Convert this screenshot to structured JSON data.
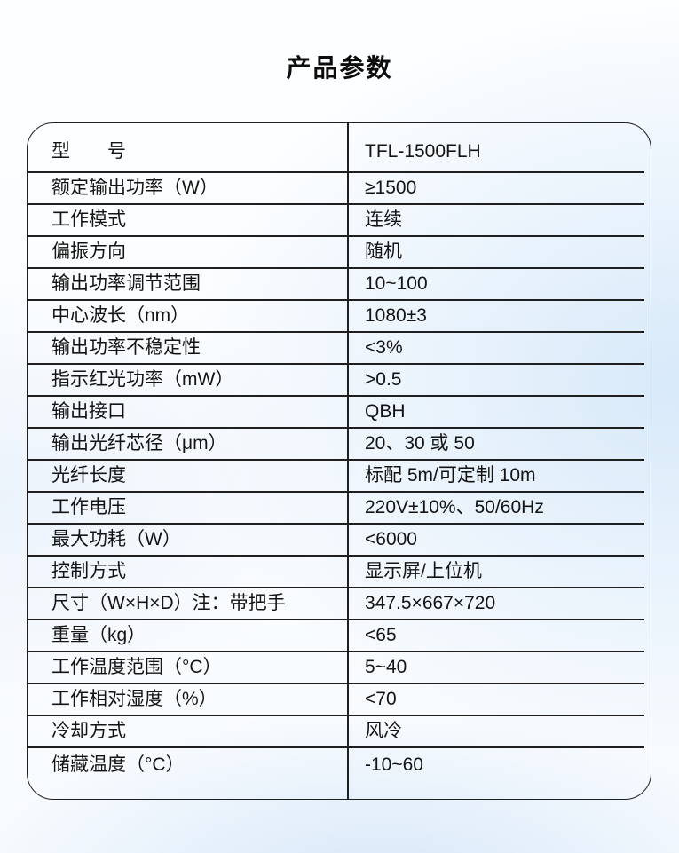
{
  "page": {
    "title": "产品参数"
  },
  "colors": {
    "text": "#141414",
    "table_border": "#1f1f1f",
    "background_tint_right": "#d6e8f9",
    "background_tint_bottom": "#d3e5f8",
    "background_base": "#fdfeff"
  },
  "table": {
    "columns": [
      "parameter",
      "value"
    ],
    "rows": [
      {
        "label": "型　　号",
        "value": "TFL-1500FLH"
      },
      {
        "label": "额定输出功率（W）",
        "value": "≥1500"
      },
      {
        "label": "工作模式",
        "value": "连续"
      },
      {
        "label": "偏振方向",
        "value": "随机"
      },
      {
        "label": "输出功率调节范围",
        "value": "10~100"
      },
      {
        "label": "中心波长（nm）",
        "value": "1080±3"
      },
      {
        "label": "输出功率不稳定性",
        "value": "<3%"
      },
      {
        "label": "指示红光功率（mW）",
        "value": ">0.5"
      },
      {
        "label": "输出接口",
        "value": "QBH"
      },
      {
        "label": "输出光纤芯径（μm）",
        "value": "20、30 或 50"
      },
      {
        "label": "光纤长度",
        "value": "标配 5m/可定制 10m"
      },
      {
        "label": "工作电压",
        "value": "220V±10%、50/60Hz"
      },
      {
        "label": "最大功耗（W）",
        "value": "<6000"
      },
      {
        "label": "控制方式",
        "value": "显示屏/上位机"
      },
      {
        "label": "尺寸（W×H×D）注：带把手",
        "value": "347.5×667×720"
      },
      {
        "label": "重量（kg）",
        "value": "<65"
      },
      {
        "label": "工作温度范围（°C）",
        "value": "5~40"
      },
      {
        "label": "工作相对湿度（%）",
        "value": "<70"
      },
      {
        "label": "冷却方式",
        "value": "风冷"
      },
      {
        "label": "储藏温度（°C）",
        "value": "-10~60"
      }
    ]
  }
}
